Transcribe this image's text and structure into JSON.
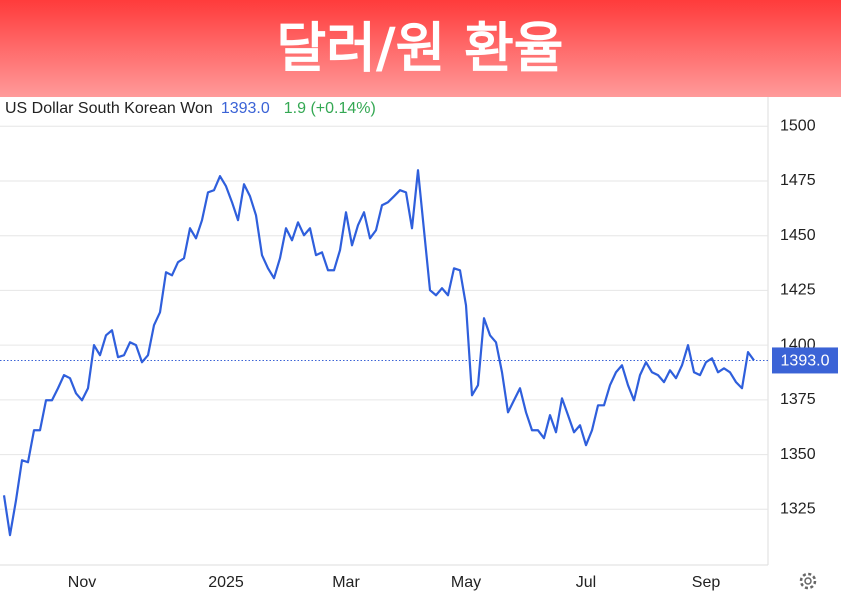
{
  "header": {
    "title": "달러/원 환율"
  },
  "chart_data": {
    "type": "line",
    "title": "US Dollar South Korean Won",
    "last": {
      "value": 1393.0,
      "label": "1393.0"
    },
    "change": "1.9 (+0.14%)",
    "color": "#2f5fdc",
    "categories": [
      null,
      null,
      null,
      null,
      null,
      null,
      null,
      null,
      null,
      null,
      null,
      null,
      null,
      "Nov",
      null,
      null,
      null,
      null,
      null,
      null,
      null,
      null,
      null,
      null,
      null,
      null,
      null,
      null,
      null,
      null,
      null,
      null,
      null,
      null,
      null,
      null,
      null,
      "2025",
      null,
      null,
      null,
      null,
      null,
      null,
      null,
      null,
      null,
      null,
      null,
      null,
      null,
      null,
      null,
      null,
      null,
      null,
      null,
      "Mar",
      null,
      null,
      null,
      null,
      null,
      null,
      null,
      null,
      null,
      null,
      null,
      null,
      null,
      null,
      null,
      null,
      null,
      null,
      null,
      "May",
      null,
      null,
      null,
      null,
      null,
      null,
      null,
      null,
      null,
      null,
      null,
      null,
      null,
      null,
      null,
      null,
      null,
      null,
      null,
      "Jul",
      null,
      null,
      null,
      null,
      null,
      null,
      null,
      null,
      null,
      null,
      null,
      null,
      null,
      null,
      null,
      null,
      null,
      null,
      null,
      "Sep",
      null,
      null,
      null,
      null,
      null,
      null,
      null,
      null
    ],
    "values": [
      1331.4,
      1313.2,
      1329.1,
      1347.4,
      1346.5,
      1361.1,
      1361.1,
      1374.8,
      1374.8,
      1380.3,
      1386.3,
      1384.9,
      1378.0,
      1374.8,
      1380.3,
      1400.0,
      1395.4,
      1404.5,
      1406.8,
      1394.5,
      1395.4,
      1401.3,
      1400.0,
      1392.2,
      1395.4,
      1409.1,
      1415.0,
      1433.3,
      1431.9,
      1437.9,
      1439.7,
      1453.4,
      1448.8,
      1457.1,
      1469.8,
      1470.8,
      1477.2,
      1472.6,
      1465.3,
      1457.1,
      1473.5,
      1468.0,
      1459.3,
      1441.1,
      1435.1,
      1430.6,
      1439.7,
      1453.4,
      1447.9,
      1456.1,
      1450.2,
      1453.4,
      1441.1,
      1442.4,
      1434.2,
      1434.2,
      1443.4,
      1460.7,
      1445.6,
      1454.8,
      1460.7,
      1448.8,
      1452.5,
      1463.9,
      1465.3,
      1468.0,
      1470.8,
      1469.8,
      1453.4,
      1479.9,
      1452.5,
      1425.1,
      1422.8,
      1426.0,
      1422.8,
      1435.1,
      1434.2,
      1418.2,
      1377.1,
      1381.7,
      1412.3,
      1404.5,
      1401.3,
      1387.6,
      1369.3,
      1374.8,
      1380.3,
      1369.3,
      1361.1,
      1361.1,
      1357.5,
      1368.0,
      1360.2,
      1375.7,
      1368.0,
      1360.2,
      1363.4,
      1354.3,
      1361.1,
      1372.5,
      1372.5,
      1381.7,
      1387.6,
      1390.8,
      1381.7,
      1374.8,
      1386.3,
      1392.2,
      1387.6,
      1386.3,
      1383.1,
      1388.5,
      1384.9,
      1390.8,
      1400.0,
      1387.6,
      1386.3,
      1392.2,
      1394.0,
      1387.6,
      1389.4,
      1387.6,
      1383.1,
      1380.3,
      1396.8,
      1393.0
    ],
    "ylim": [
      1300,
      1512
    ],
    "yticks": [
      1325,
      1350,
      1375,
      1400,
      1425,
      1450,
      1475,
      1500
    ],
    "grid": true
  }
}
